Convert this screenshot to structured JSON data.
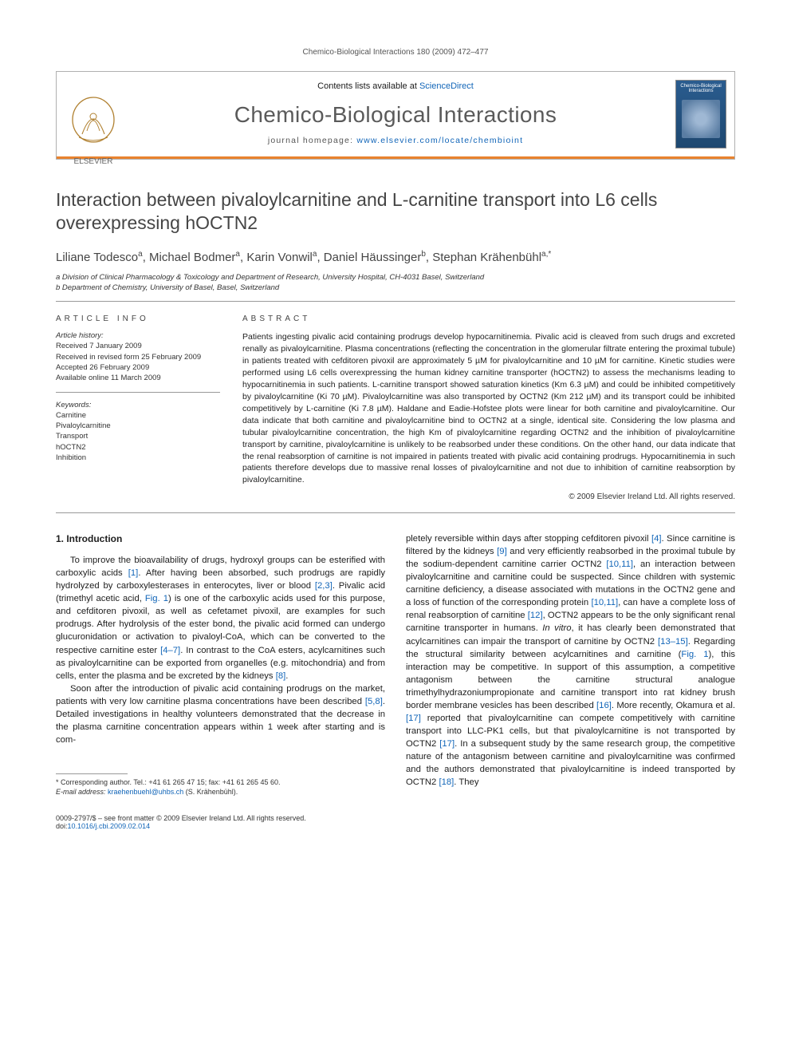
{
  "running_header": "Chemico-Biological Interactions 180 (2009) 472–477",
  "header": {
    "contents_prefix": "Contents lists available at ",
    "contents_link": "ScienceDirect",
    "journal_title": "Chemico-Biological Interactions",
    "homepage_prefix": "journal homepage: ",
    "homepage_url": "www.elsevier.com/locate/chembioint",
    "elsevier_label": "ELSEVIER",
    "cover_label": "Chemico-Biological Interactions"
  },
  "article": {
    "title": "Interaction between pivaloylcarnitine and L-carnitine transport into L6 cells overexpressing hOCTN2",
    "authors_html": "Liliane Todesco<sup>a</sup>, Michael Bodmer<sup>a</sup>, Karin Vonwil<sup>a</sup>, Daniel Häussinger<sup>b</sup>, Stephan Krähenbühl<sup>a,*</sup>",
    "affiliations": [
      "a Division of Clinical Pharmacology & Toxicology and Department of Research, University Hospital, CH-4031 Basel, Switzerland",
      "b Department of Chemistry, University of Basel, Basel, Switzerland"
    ]
  },
  "info": {
    "block_title": "ARTICLE INFO",
    "history_title": "Article history:",
    "history": [
      "Received 7 January 2009",
      "Received in revised form 25 February 2009",
      "Accepted 26 February 2009",
      "Available online 11 March 2009"
    ],
    "keywords_title": "Keywords:",
    "keywords": [
      "Carnitine",
      "Pivaloylcarnitine",
      "Transport",
      "hOCTN2",
      "Inhibition"
    ]
  },
  "abstract": {
    "block_title": "ABSTRACT",
    "text": "Patients ingesting pivalic acid containing prodrugs develop hypocarnitinemia. Pivalic acid is cleaved from such drugs and excreted renally as pivaloylcarnitine. Plasma concentrations (reflecting the concentration in the glomerular filtrate entering the proximal tubule) in patients treated with cefditoren pivoxil are approximately 5 µM for pivaloylcarnitine and 10 µM for carnitine. Kinetic studies were performed using L6 cells overexpressing the human kidney carnitine transporter (hOCTN2) to assess the mechanisms leading to hypocarnitinemia in such patients. L-carnitine transport showed saturation kinetics (Km 6.3 µM) and could be inhibited competitively by pivaloylcarnitine (Ki 70 µM). Pivaloylcarnitine was also transported by OCTN2 (Km 212 µM) and its transport could be inhibited competitively by L-carnitine (Ki 7.8 µM). Haldane and Eadie-Hofstee plots were linear for both carnitine and pivaloylcarnitine. Our data indicate that both carnitine and pivaloylcarnitine bind to OCTN2 at a single, identical site. Considering the low plasma and tubular pivaloylcarnitine concentration, the high Km of pivaloylcarnitine regarding OCTN2 and the inhibition of pivaloylcarnitine transport by carnitine, pivaloylcarnitine is unlikely to be reabsorbed under these conditions. On the other hand, our data indicate that the renal reabsorption of carnitine is not impaired in patients treated with pivalic acid containing prodrugs. Hypocarnitinemia in such patients therefore develops due to massive renal losses of pivaloylcarnitine and not due to inhibition of carnitine reabsorption by pivaloylcarnitine.",
    "copyright": "© 2009 Elsevier Ireland Ltd. All rights reserved."
  },
  "body": {
    "section_title": "1. Introduction",
    "p1": "To improve the bioavailability of drugs, hydroxyl groups can be esterified with carboxylic acids [1]. After having been absorbed, such prodrugs are rapidly hydrolyzed by carboxylesterases in enterocytes, liver or blood [2,3]. Pivalic acid (trimethyl acetic acid, Fig. 1) is one of the carboxylic acids used for this purpose, and cefditoren pivoxil, as well as cefetamet pivoxil, are examples for such prodrugs. After hydrolysis of the ester bond, the pivalic acid formed can undergo glucuronidation or activation to pivaloyl-CoA, which can be converted to the respective carnitine ester [4–7]. In contrast to the CoA esters, acylcarnitines such as pivaloylcarnitine can be exported from organelles (e.g. mitochondria) and from cells, enter the plasma and be excreted by the kidneys [8].",
    "p2": "Soon after the introduction of pivalic acid containing prodrugs on the market, patients with very low carnitine plasma concentrations have been described [5,8]. Detailed investigations in healthy volunteers demonstrated that the decrease in the plasma carnitine concentration appears within 1 week after starting and is com-",
    "p3": "pletely reversible within days after stopping cefditoren pivoxil [4]. Since carnitine is filtered by the kidneys [9] and very efficiently reabsorbed in the proximal tubule by the sodium-dependent carnitine carrier OCTN2 [10,11], an interaction between pivaloylcarnitine and carnitine could be suspected. Since children with systemic carnitine deficiency, a disease associated with mutations in the OCTN2 gene and a loss of function of the corresponding protein [10,11], can have a complete loss of renal reabsorption of carnitine [12], OCTN2 appears to be the only significant renal carnitine transporter in humans. In vitro, it has clearly been demonstrated that acylcarnitines can impair the transport of carnitine by OCTN2 [13–15]. Regarding the structural similarity between acylcarnitines and carnitine (Fig. 1), this interaction may be competitive. In support of this assumption, a competitive antagonism between the carnitine structural analogue trimethylhydrazoniumpropionate and carnitine transport into rat kidney brush border membrane vesicles has been described [16]. More recently, Okamura et al. [17] reported that pivaloylcarnitine can compete competitively with carnitine transport into LLC-PK1 cells, but that pivaloylcarnitine is not transported by OCTN2 [17]. In a subsequent study by the same research group, the competitive nature of the antagonism between carnitine and pivaloylcarnitine was confirmed and the authors demonstrated that pivaloylcarnitine is indeed transported by OCTN2 [18]. They"
  },
  "footnote": {
    "corr_label": "* Corresponding author. Tel.: +41 61 265 47 15; fax: +41 61 265 45 60.",
    "email_label": "E-mail address: ",
    "email": "kraehenbuehl@uhbs.ch",
    "email_tail": " (S. Krähenbühl)."
  },
  "footer": {
    "left": "0009-2797/$ – see front matter © 2009 Elsevier Ireland Ltd. All rights reserved.",
    "doi_prefix": "doi:",
    "doi": "10.1016/j.cbi.2009.02.014"
  },
  "colors": {
    "accent_orange": "#e9832e",
    "link_blue": "#1165b8",
    "rule_gray": "#999999",
    "text_gray": "#454545"
  }
}
